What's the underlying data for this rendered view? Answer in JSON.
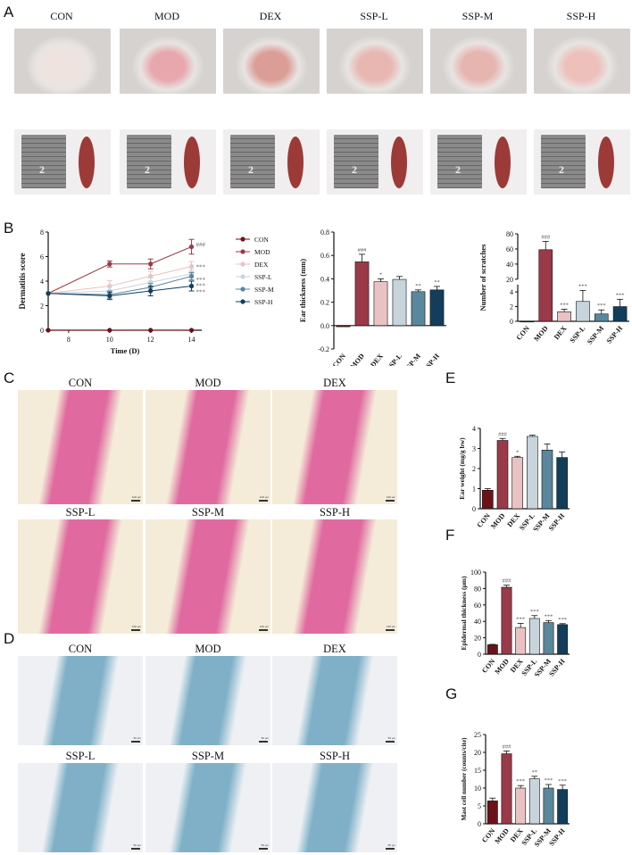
{
  "panel_letters": [
    "A",
    "B",
    "C",
    "D",
    "E",
    "F",
    "G"
  ],
  "groups": [
    "CON",
    "MOD",
    "DEX",
    "SSP-L",
    "SSP-M",
    "SSP-H"
  ],
  "panel_a": {
    "ear_colors": [
      "#efe3e0",
      "#e7a7ad",
      "#dc9d96",
      "#e8b7b2",
      "#e7b5b0",
      "#edc0bb"
    ],
    "spleen_color": "#9c3a38",
    "scale_tick": "2"
  },
  "panel_c": {
    "scale_label": "100 μm",
    "stain_color": "#e06aa0"
  },
  "panel_d": {
    "scale_label": "50 μm",
    "stain_color": "#7fb0c8"
  },
  "colors": {
    "CON": "#6b1219",
    "MOD": "#9a3a48",
    "DEX": "#e9c2c4",
    "SSP-L": "#c8d4dc",
    "SSP-M": "#5b879c",
    "SSP-H": "#123e5c"
  },
  "chart_data": [
    {
      "id": "dermatitis",
      "type": "line",
      "xlabel": "Time (D)",
      "ylabel": "Dermatitis score",
      "x": [
        7,
        10,
        12,
        14
      ],
      "xticks": [
        "8",
        "10",
        "12",
        "14"
      ],
      "xlim": [
        7,
        14.5
      ],
      "ylim": [
        0,
        8
      ],
      "yticks": [
        "0",
        "2",
        "4",
        "6",
        "8"
      ],
      "series": [
        {
          "name": "CON",
          "values": [
            0,
            0,
            0,
            0
          ],
          "err": [
            0,
            0,
            0,
            0
          ],
          "marker": "circle",
          "sig": ""
        },
        {
          "name": "MOD",
          "values": [
            3,
            5.4,
            5.4,
            6.8
          ],
          "err": [
            0,
            0.25,
            0.4,
            0.6
          ],
          "marker": "circle",
          "sig": "###"
        },
        {
          "name": "DEX",
          "values": [
            3,
            3.6,
            4.4,
            5.2
          ],
          "err": [
            0,
            0.45,
            0.4,
            0.4
          ],
          "marker": "circle",
          "sig": "***"
        },
        {
          "name": "SSP-L",
          "values": [
            3,
            3.2,
            3.9,
            4.6
          ],
          "err": [
            0,
            0.3,
            0.35,
            0.35
          ],
          "marker": "circle",
          "sig": "***"
        },
        {
          "name": "SSP-M",
          "values": [
            3,
            2.9,
            3.5,
            4.4
          ],
          "err": [
            0,
            0.3,
            0.3,
            0.3
          ],
          "marker": "circle",
          "sig": "***"
        },
        {
          "name": "SSP-H",
          "values": [
            3,
            2.8,
            3.2,
            3.6
          ],
          "err": [
            0,
            0.3,
            0.4,
            0.4
          ],
          "marker": "circle",
          "sig": "***"
        }
      ],
      "legend": "right"
    },
    {
      "id": "ear_thickness",
      "type": "bar",
      "ylabel": "Ear thickness (mm)",
      "categories": [
        "CON",
        "MOD",
        "DEX",
        "SSP-L",
        "SSP-M",
        "SSP-H"
      ],
      "values": [
        -0.01,
        0.545,
        0.375,
        0.395,
        0.29,
        0.305
      ],
      "err": [
        0,
        0.065,
        0.025,
        0.025,
        0.015,
        0.03
      ],
      "sig": [
        "",
        "###",
        "*",
        "",
        "**",
        "**"
      ],
      "ylim": [
        -0.2,
        0.8
      ],
      "yticks": [
        "-0.2",
        "0.0",
        "0.2",
        "0.4",
        "0.6",
        "0.8"
      ]
    },
    {
      "id": "scratches",
      "type": "bar",
      "ylabel": "Number of scratches",
      "categories": [
        "CON",
        "MOD",
        "DEX",
        "SSP-L",
        "SSP-M",
        "SSP-H"
      ],
      "values": [
        0,
        59,
        1.3,
        2.7,
        1.0,
        2.0
      ],
      "err": [
        0,
        11,
        0.35,
        1.5,
        0.55,
        1.0
      ],
      "sig": [
        "",
        "###",
        "***",
        "***",
        "***",
        "***"
      ],
      "ylim": [
        0,
        80
      ],
      "axis_break": [
        5,
        20
      ],
      "yticks": [
        "0",
        "2",
        "4",
        "20",
        "40",
        "60",
        "80"
      ]
    },
    {
      "id": "ear_weight",
      "type": "bar",
      "ylabel": "Ear weight (mg/g bw)",
      "categories": [
        "CON",
        "MOD",
        "DEX",
        "SSP-L",
        "SSP-M",
        "SSP-H"
      ],
      "values": [
        0.92,
        3.4,
        2.55,
        3.6,
        2.92,
        2.55
      ],
      "err": [
        0.08,
        0.1,
        0.06,
        0.06,
        0.3,
        0.28
      ],
      "sig": [
        "",
        "###",
        "*",
        "",
        "",
        ""
      ],
      "ylim": [
        0,
        4
      ],
      "yticks": [
        "0",
        "1",
        "2",
        "3",
        "4"
      ]
    },
    {
      "id": "epidermal_thickness",
      "type": "bar",
      "ylabel": "Epidermal thickness (μm)",
      "categories": [
        "CON",
        "MOD",
        "DEX",
        "SSP-L",
        "SSP-M",
        "SSP-H"
      ],
      "values": [
        11.5,
        81.5,
        32.5,
        43.5,
        38.5,
        36
      ],
      "err": [
        0.5,
        2.5,
        5,
        3.5,
        2.5,
        1.2
      ],
      "sig": [
        "",
        "###",
        "***",
        "***",
        "***",
        "***"
      ],
      "ylim": [
        0,
        100
      ],
      "yticks": [
        "0",
        "20",
        "40",
        "60",
        "80",
        "100"
      ]
    },
    {
      "id": "mast_cells",
      "type": "bar",
      "ylabel": "Mast cell number (counts/cite)",
      "categories": [
        "CON",
        "MOD",
        "DEX",
        "SSP-L",
        "SSP-M",
        "SSP-H"
      ],
      "values": [
        6.4,
        19.6,
        10.0,
        12.6,
        10.0,
        9.6
      ],
      "err": [
        0.8,
        0.8,
        0.7,
        0.7,
        1.0,
        1.2
      ],
      "sig": [
        "",
        "###",
        "***",
        "**",
        "***",
        "***"
      ],
      "ylim": [
        0,
        25
      ],
      "yticks": [
        "0",
        "5",
        "10",
        "15",
        "20",
        "25"
      ]
    }
  ]
}
